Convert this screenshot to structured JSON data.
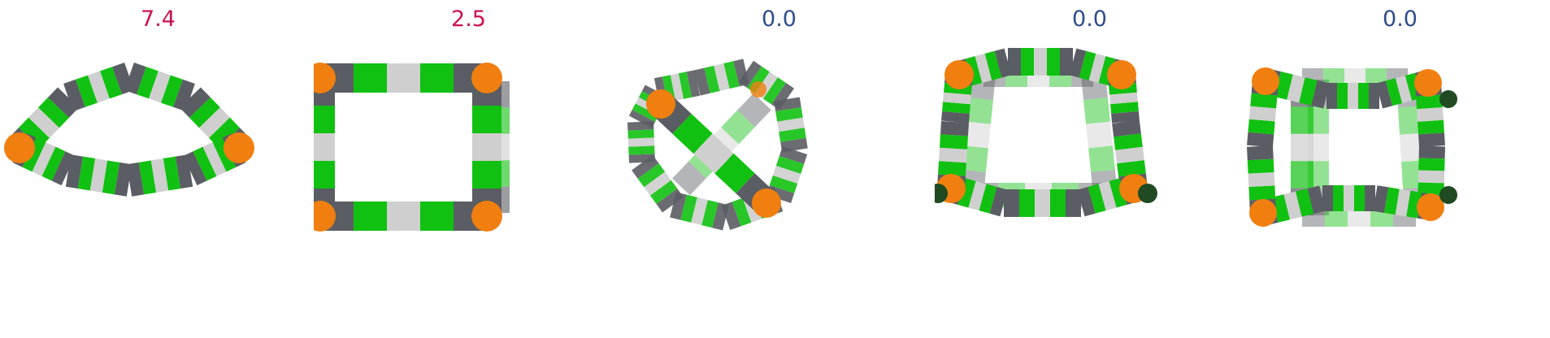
{
  "colors": {
    "highlight": "#cc1155",
    "neutral": "#2e4d8a",
    "green": "#11c111",
    "dark": "#5a5d63",
    "light": "#cfcfcf",
    "orange": "#f07f10"
  },
  "panels": [
    {
      "value": "7.4",
      "color": "#cc1155",
      "shape": "lens"
    },
    {
      "value": "2.5",
      "color": "#cc1155",
      "shape": "square"
    },
    {
      "value": "0.0",
      "color": "#2e4d8a",
      "shape": "octagon-cross"
    },
    {
      "value": "0.0",
      "color": "#2e4d8a",
      "shape": "trapezoid-prism"
    },
    {
      "value": "0.0",
      "color": "#2e4d8a",
      "shape": "cube"
    }
  ]
}
